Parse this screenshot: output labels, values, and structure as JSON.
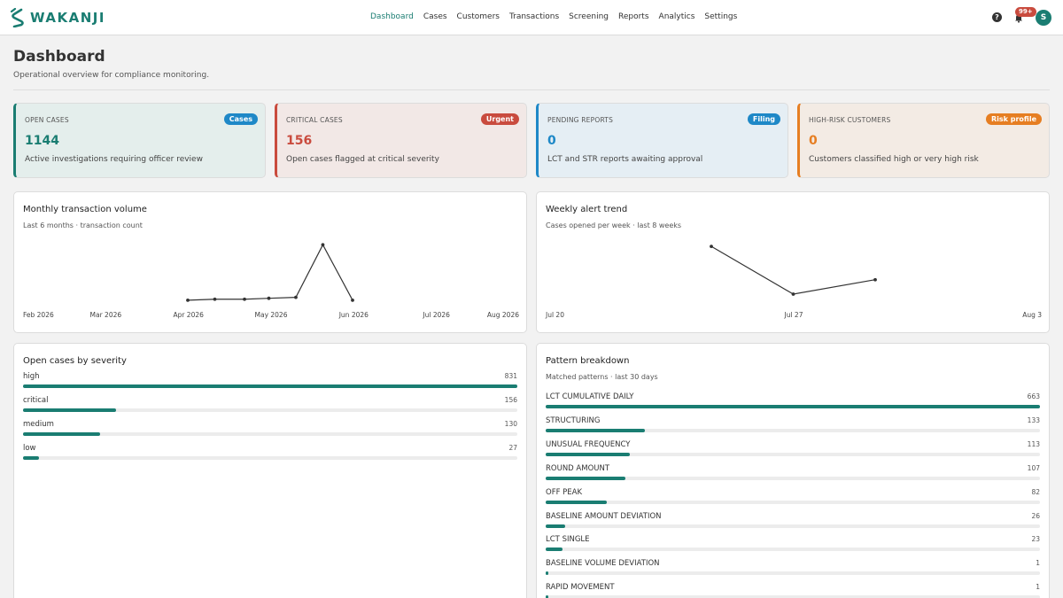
{
  "app": {
    "logo_text": "WAKANJI",
    "nav": [
      "Dashboard",
      "Cases",
      "Customers",
      "Transactions",
      "Screening",
      "Reports",
      "Analytics",
      "Settings"
    ],
    "active_nav": "Dashboard",
    "help_glyph": "?",
    "notification_count": "99+",
    "avatar_initial": "S",
    "accent_color": "#1a7d72"
  },
  "header": {
    "title": "Dashboard",
    "subtitle": "Operational overview for compliance monitoring."
  },
  "kpis": [
    {
      "label": "OPEN CASES",
      "badge": "Cases",
      "value": "1144",
      "desc": "Active investigations requiring officer review"
    },
    {
      "label": "CRITICAL CASES",
      "badge": "Urgent",
      "value": "156",
      "desc": "Open cases flagged at critical severity"
    },
    {
      "label": "PENDING REPORTS",
      "badge": "Filing",
      "value": "0",
      "desc": "LCT and STR reports awaiting approval"
    },
    {
      "label": "HIGH-RISK CUSTOMERS",
      "badge": "Risk profile",
      "value": "0",
      "desc": "Customers classified high or very high risk"
    }
  ],
  "charts": {
    "monthly": {
      "title": "Monthly transaction volume",
      "subtitle": "Last 6 months · transaction count"
    },
    "weekly": {
      "title": "Weekly alert trend",
      "subtitle": "Cases opened per week · last 8 weeks"
    },
    "severity": {
      "title": "Open cases by severity"
    },
    "patterns": {
      "title": "Pattern breakdown",
      "subtitle": "Matched patterns · last 30 days"
    }
  },
  "chart_data": [
    {
      "type": "line",
      "title": "Monthly transaction volume",
      "x_ticks": [
        "Feb 2026",
        "Mar 2026",
        "Apr 2026",
        "May 2026",
        "Jun 2026",
        "Jul 2026",
        "Aug 2026"
      ],
      "x": [
        "2026-04-10",
        "2026-04-20",
        "2026-05-01",
        "2026-05-10",
        "2026-05-20",
        "2026-05-30",
        "2026-06-10"
      ],
      "values": [
        2,
        3,
        3,
        4,
        5,
        60,
        2
      ],
      "ylim": [
        0,
        64
      ]
    },
    {
      "type": "line",
      "title": "Weekly alert trend",
      "x_ticks": [
        "Jul 20",
        "Jul 27",
        "Aug 3"
      ],
      "x": [
        "2026-07-23",
        "2026-07-27",
        "2026-07-31"
      ],
      "values": [
        54,
        1,
        17
      ],
      "ylim": [
        0,
        60
      ]
    },
    {
      "type": "bar",
      "title": "Open cases by severity",
      "categories": [
        "high",
        "critical",
        "medium",
        "low"
      ],
      "values": [
        831,
        156,
        130,
        27
      ]
    },
    {
      "type": "bar",
      "title": "Pattern breakdown",
      "categories": [
        "LCT CUMULATIVE DAILY",
        "STRUCTURING",
        "UNUSUAL FREQUENCY",
        "ROUND AMOUNT",
        "OFF PEAK",
        "BASELINE AMOUNT DEVIATION",
        "LCT SINGLE",
        "BASELINE VOLUME DEVIATION",
        "RAPID MOVEMENT"
      ],
      "values": [
        663,
        133,
        113,
        107,
        82,
        26,
        23,
        1,
        1
      ]
    }
  ]
}
